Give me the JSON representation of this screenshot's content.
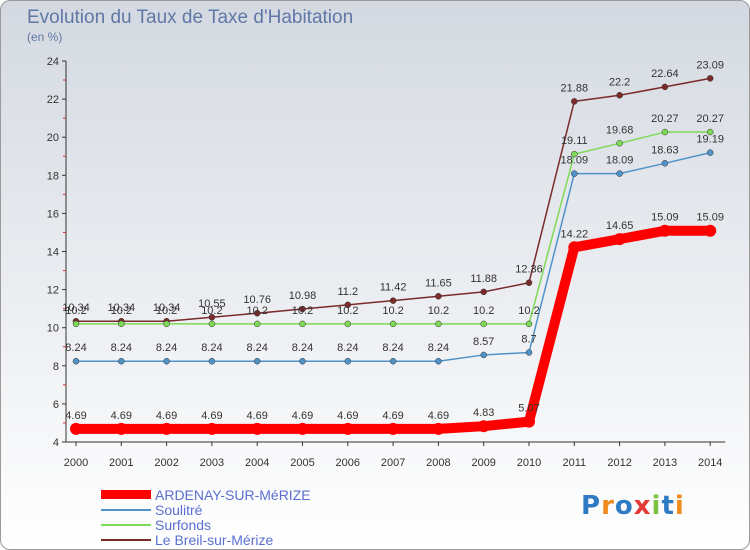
{
  "header": {
    "title": "Evolution du Taux de Taxe d'Habitation",
    "unit": "(en %)"
  },
  "logo": {
    "text": "Proxiti"
  },
  "chart_data": {
    "type": "line",
    "x": [
      "2000",
      "2001",
      "2002",
      "2003",
      "2004",
      "2005",
      "2006",
      "2007",
      "2008",
      "2009",
      "2010",
      "2011",
      "2012",
      "2013",
      "2014"
    ],
    "ylim": [
      4,
      24
    ],
    "yticks": [
      4,
      6,
      8,
      10,
      12,
      14,
      16,
      18,
      20,
      22,
      24
    ],
    "grid": false,
    "legend_position": "bottom-left",
    "series": [
      {
        "name": "ARDENAY-SUR-MéRIZE",
        "color": "#ff0000",
        "values": [
          4.69,
          4.69,
          4.69,
          4.69,
          4.69,
          4.69,
          4.69,
          4.69,
          4.69,
          4.83,
          5.07,
          14.22,
          14.65,
          15.09,
          15.09
        ],
        "labels": [
          "4.69",
          "4.69",
          "4.69",
          "4.69",
          "4.69",
          "4.69",
          "4.69",
          "4.69",
          "4.69",
          "4.83",
          "5.07",
          "14.22",
          "14.65",
          "15.09",
          "15.09"
        ]
      },
      {
        "name": "Soulitré",
        "color": "#4f93c9",
        "values": [
          8.24,
          8.24,
          8.24,
          8.24,
          8.24,
          8.24,
          8.24,
          8.24,
          8.24,
          8.57,
          8.7,
          18.09,
          18.09,
          18.63,
          19.19
        ],
        "labels": [
          "8.24",
          "8.24",
          "8.24",
          "8.24",
          "8.24",
          "8.24",
          "8.24",
          "8.24",
          "8.24",
          "8.57",
          "8.7",
          "18.09",
          "18.09",
          "18.63",
          "19.19"
        ]
      },
      {
        "name": "Surfonds",
        "color": "#7ed957",
        "values": [
          10.2,
          10.2,
          10.2,
          10.2,
          10.2,
          10.2,
          10.2,
          10.2,
          10.2,
          10.2,
          10.2,
          19.11,
          19.68,
          20.27,
          20.27
        ],
        "labels": [
          "10.2",
          "10.2",
          "10.2",
          "10.2",
          "10.2",
          "10.2",
          "10.2",
          "10.2",
          "10.2",
          "10.2",
          "10.2",
          "19.11",
          "19.68",
          "20.27",
          "20.27"
        ]
      },
      {
        "name": "Le Breil-sur-Mérize",
        "color": "#7b2a2a",
        "values": [
          10.34,
          10.34,
          10.34,
          10.55,
          10.76,
          10.98,
          11.2,
          11.42,
          11.65,
          11.88,
          12.36,
          21.88,
          22.2,
          22.64,
          23.09
        ],
        "labels": [
          "10.34",
          "10.34",
          "10.34",
          "10.55",
          "10.76",
          "10.98",
          "11.2",
          "11.42",
          "11.65",
          "11.88",
          "12.36",
          "21.88",
          "22.2",
          "22.64",
          "23.09"
        ]
      }
    ]
  }
}
